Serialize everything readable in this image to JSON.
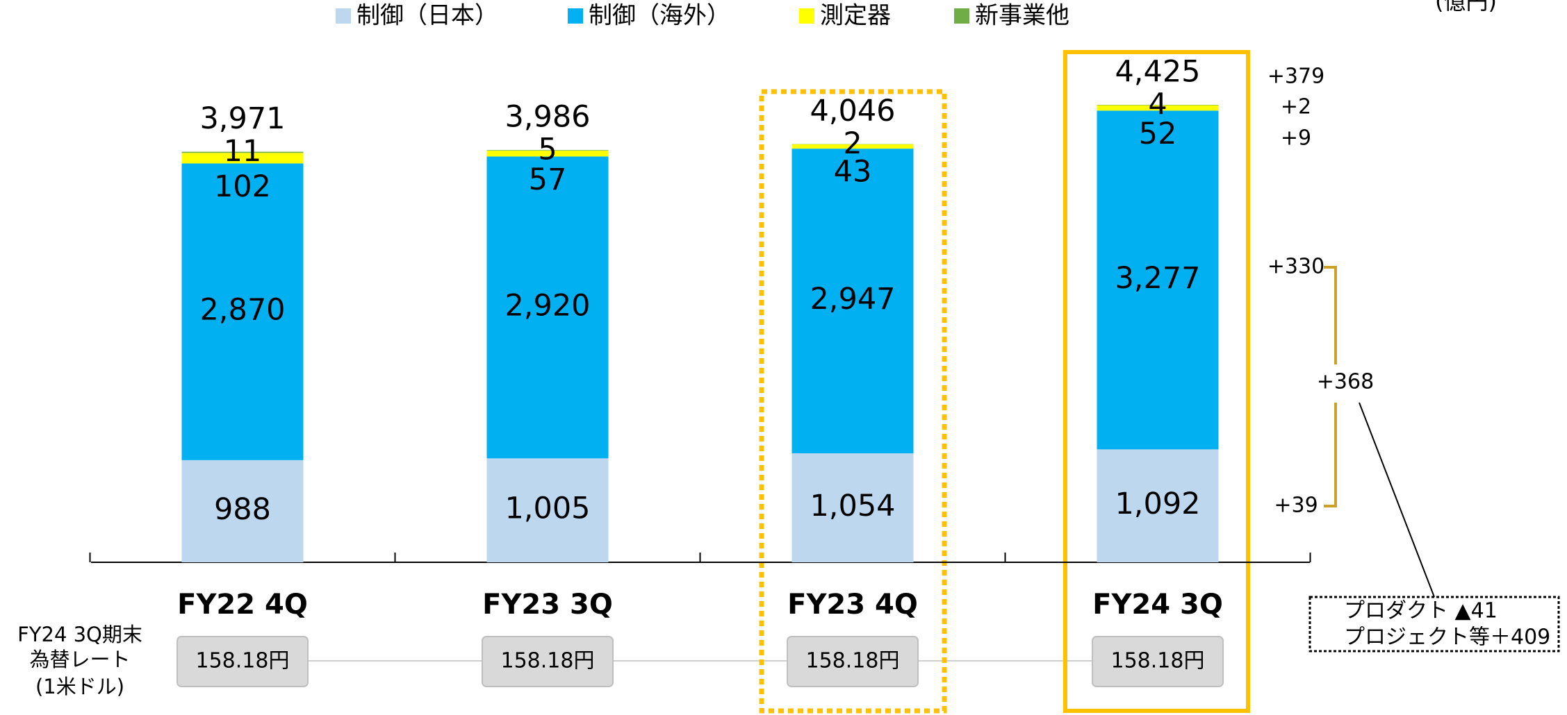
{
  "chart_data": {
    "type": "stacked_bar",
    "unit": "(億円)",
    "categories": [
      "FY22 4Q",
      "FY23 3Q",
      "FY23 4Q",
      "FY24 3Q"
    ],
    "series": [
      {
        "name": "制御（日本）",
        "color": "#BDD7EE",
        "values": [
          988,
          1005,
          1054,
          1092
        ],
        "value_labels": [
          "988",
          "1,005",
          "1,054",
          "1,092"
        ]
      },
      {
        "name": "制御（海外）",
        "color": "#00B0F0",
        "values": [
          2870,
          2920,
          2947,
          3277
        ],
        "value_labels": [
          "2,870",
          "2,920",
          "2,947",
          "3,277"
        ]
      },
      {
        "name": "測定器",
        "color": "#FFFF00",
        "values": [
          102,
          57,
          43,
          52
        ]
      },
      {
        "name": "新事業他",
        "color": "#70AD47",
        "values": [
          11,
          5,
          2,
          4
        ]
      }
    ],
    "totals": [
      3971,
      3986,
      4046,
      4425
    ],
    "total_labels": [
      "3,971",
      "3,986",
      "4,046",
      "4,425"
    ],
    "rate_title": [
      "FY24 3Q期末",
      "為替レート",
      "(1米ドル)"
    ],
    "rates": [
      "158.18円",
      "158.18円",
      "158.18円",
      "158.18円"
    ],
    "deltas": [
      "+379",
      "+2",
      "+9",
      "+330",
      "+39"
    ],
    "bracket_delta": "+368",
    "note": [
      "プロダクト ▲41",
      "プロジェクト等＋409"
    ]
  }
}
